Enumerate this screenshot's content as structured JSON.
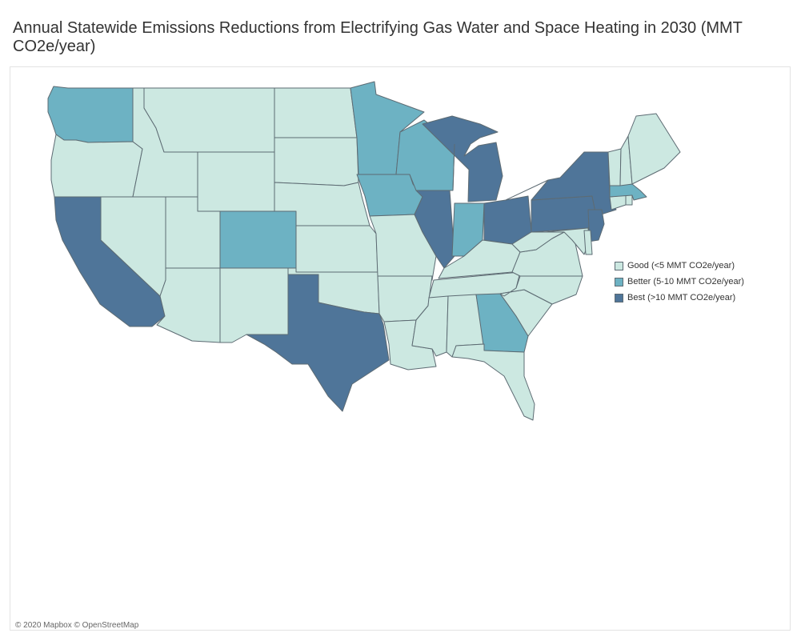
{
  "title": "Annual Statewide Emissions Reductions from Electrifying Gas Water and Space Heating in 2030 (MMT CO2e/year)",
  "legend": [
    {
      "key": "good",
      "label": "Good (<5 MMT CO2e/year)",
      "color": "#cce8e1"
    },
    {
      "key": "better",
      "label": "Better (5-10 MMT CO2e/year)",
      "color": "#6db2c3"
    },
    {
      "key": "best",
      "label": "Best (>10 MMT CO2e/year)",
      "color": "#4f7599"
    }
  ],
  "categories": {
    "washington": "better",
    "oregon": "good",
    "california": "best",
    "idaho": "good",
    "nevada": "good",
    "montana": "good",
    "wyoming": "good",
    "utah": "good",
    "arizona": "good",
    "colorado": "better",
    "new-mexico": "good",
    "north-dakota": "good",
    "south-dakota": "good",
    "nebraska": "good",
    "kansas": "good",
    "oklahoma": "good",
    "texas": "best",
    "minnesota": "better",
    "iowa": "better",
    "missouri": "good",
    "arkansas": "good",
    "louisiana": "good",
    "wisconsin": "better",
    "illinois": "best",
    "michigan": "best",
    "indiana": "better",
    "ohio": "best",
    "kentucky": "good",
    "tennessee": "good",
    "mississippi": "good",
    "alabama": "good",
    "georgia": "better",
    "florida": "good",
    "south-carolina": "good",
    "north-carolina": "good",
    "virginia": "good",
    "west-virginia": "good",
    "pennsylvania": "best",
    "new-york": "best",
    "new-jersey": "best",
    "maryland": "good",
    "delaware": "good",
    "connecticut": "good",
    "rhode-island": "good",
    "massachusetts": "better",
    "vermont": "good",
    "new-hampshire": "good",
    "maine": "good"
  },
  "attribution": "© 2020 Mapbox © OpenStreetMap"
}
